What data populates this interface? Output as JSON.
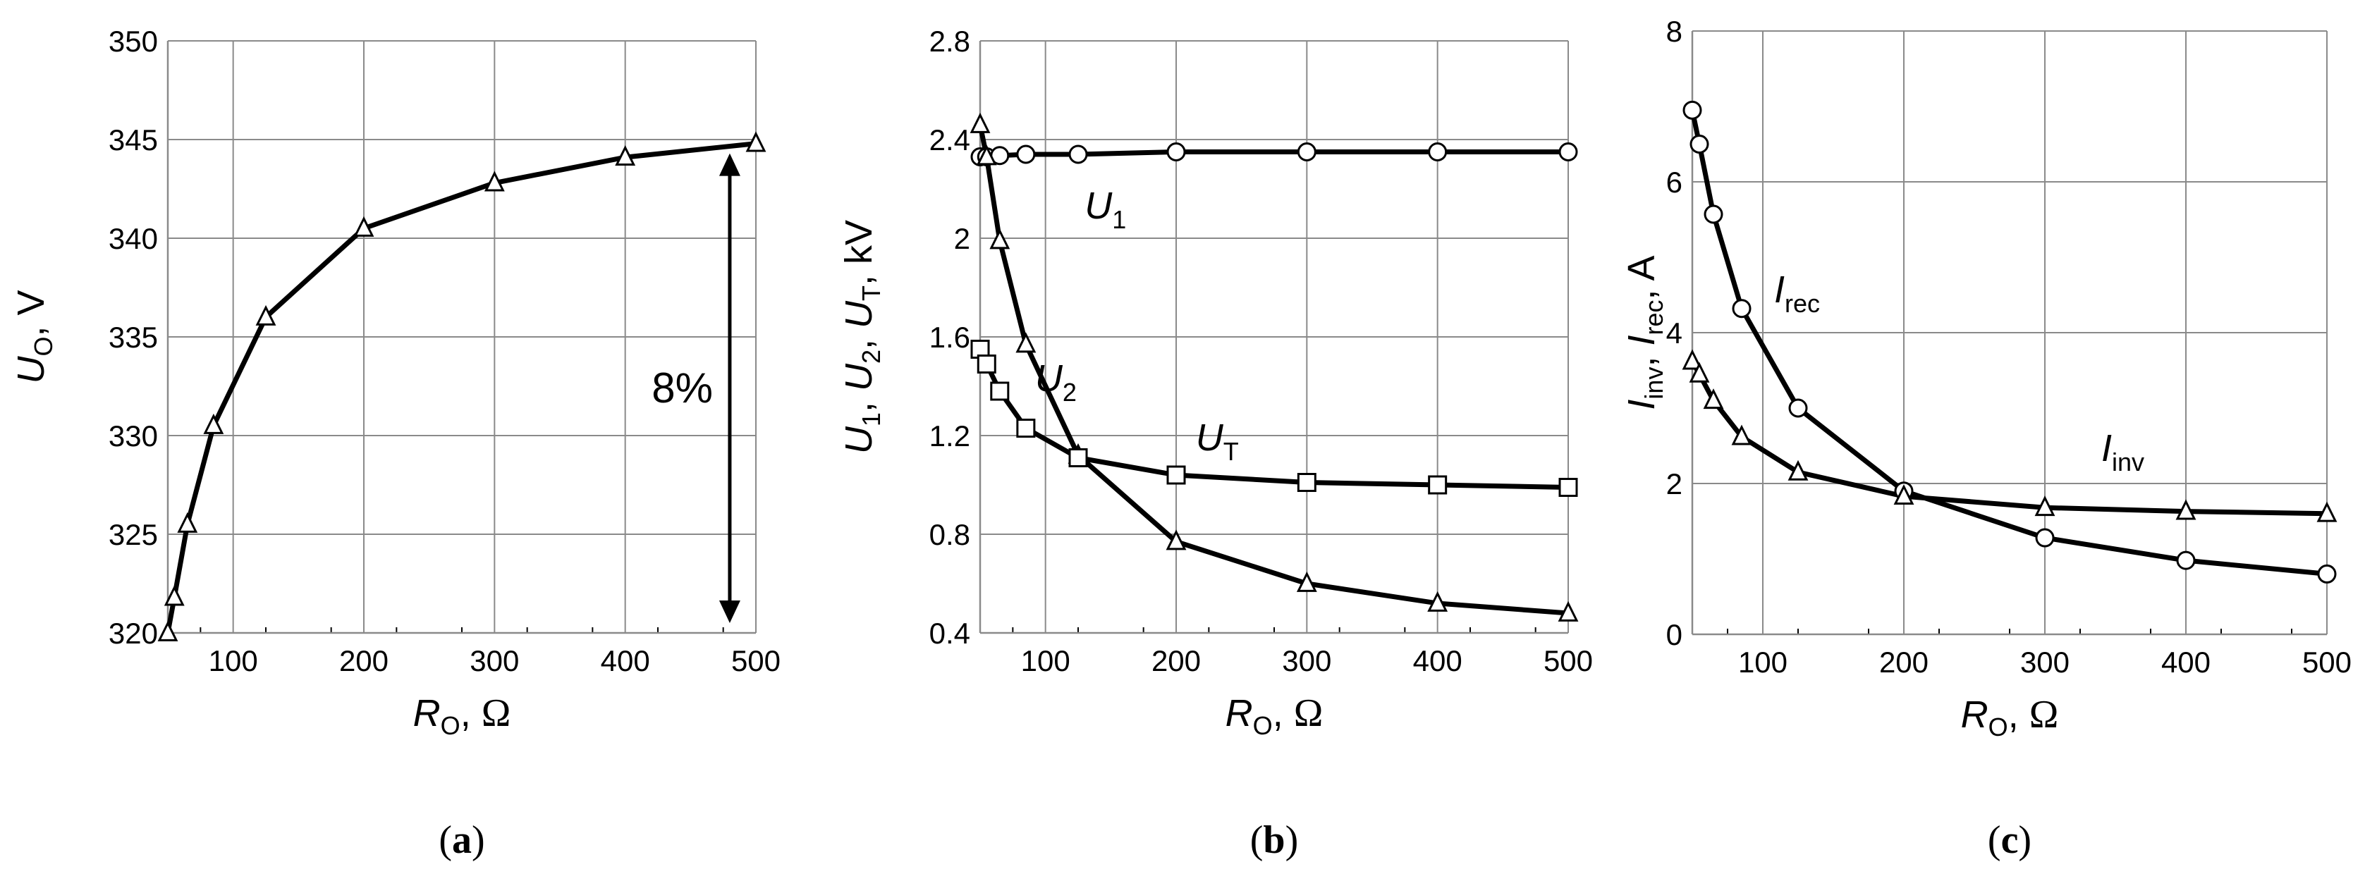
{
  "chart_data": [
    {
      "id": "a",
      "type": "line",
      "panel_label": "a",
      "xlabel": "R",
      "xlabel_sub": "O",
      "xlabel_unit": "Ω",
      "ylabel": "U",
      "ylabel_sub": "O",
      "ylabel_unit": "V",
      "xlim": [
        50,
        500
      ],
      "ylim": [
        320,
        350
      ],
      "xticks": [
        100,
        200,
        300,
        400,
        500
      ],
      "yticks": [
        320,
        325,
        330,
        335,
        340,
        345,
        350
      ],
      "annotation": {
        "text": "8%",
        "x": 480,
        "y_from": 344.3,
        "y_to": 320.5
      },
      "series": [
        {
          "name": "U_O",
          "marker": "triangle",
          "x": [
            50,
            55,
            65,
            85,
            125,
            200,
            300,
            400,
            500
          ],
          "y": [
            320,
            321.8,
            325.5,
            330.5,
            336,
            340.5,
            342.8,
            344.1,
            344.8
          ]
        }
      ]
    },
    {
      "id": "b",
      "type": "line",
      "panel_label": "b",
      "xlabel": "R",
      "xlabel_sub": "O",
      "xlabel_unit": "Ω",
      "ylabel_parts": [
        [
          "U",
          "1"
        ],
        [
          "U",
          "2"
        ],
        [
          "U",
          "T"
        ]
      ],
      "ylabel_unit": "kV",
      "xlim": [
        50,
        500
      ],
      "ylim": [
        0.4,
        2.8
      ],
      "xticks": [
        100,
        200,
        300,
        400,
        500
      ],
      "yticks": [
        0.4,
        0.8,
        1.2,
        1.6,
        2,
        2.4,
        2.8
      ],
      "series": [
        {
          "name": "U_1",
          "label": "U",
          "label_sub": "1",
          "marker": "circle",
          "label_at": [
            130,
            2.08
          ],
          "x": [
            50,
            55,
            65,
            85,
            125,
            200,
            300,
            400,
            500
          ],
          "y": [
            2.33,
            2.33,
            2.335,
            2.34,
            2.34,
            2.35,
            2.35,
            2.35,
            2.35
          ]
        },
        {
          "name": "U_2",
          "label": "U",
          "label_sub": "2",
          "marker": "triangle",
          "label_at": [
            92,
            1.38
          ],
          "x": [
            50,
            55,
            65,
            85,
            125,
            200,
            300,
            400,
            500
          ],
          "y": [
            2.46,
            2.33,
            1.99,
            1.57,
            1.12,
            0.77,
            0.6,
            0.52,
            0.48
          ]
        },
        {
          "name": "U_T",
          "label": "U",
          "label_sub": "T",
          "marker": "square",
          "label_at": [
            215,
            1.14
          ],
          "x": [
            50,
            55,
            65,
            85,
            125,
            200,
            300,
            400,
            500
          ],
          "y": [
            1.55,
            1.49,
            1.38,
            1.23,
            1.11,
            1.04,
            1.01,
            1.0,
            0.99
          ]
        }
      ]
    },
    {
      "id": "c",
      "type": "line",
      "panel_label": "c",
      "xlabel": "R",
      "xlabel_sub": "O",
      "xlabel_unit": "Ω",
      "ylabel_parts": [
        [
          "I",
          "inv"
        ],
        [
          "I",
          "rec"
        ]
      ],
      "ylabel_unit": "A",
      "xlim": [
        50,
        500
      ],
      "ylim": [
        0,
        8
      ],
      "xticks": [
        100,
        200,
        300,
        400,
        500
      ],
      "yticks": [
        0,
        2,
        4,
        6,
        8
      ],
      "series": [
        {
          "name": "I_rec",
          "label": "I",
          "label_sub": "rec",
          "marker": "circle",
          "label_at": [
            108,
            4.4
          ],
          "x": [
            50,
            55,
            65,
            85,
            125,
            200,
            300,
            400,
            500
          ],
          "y": [
            6.95,
            6.5,
            5.57,
            4.32,
            3.0,
            1.9,
            1.28,
            0.98,
            0.8
          ]
        },
        {
          "name": "I_inv",
          "label": "I",
          "label_sub": "inv",
          "marker": "triangle",
          "label_at": [
            340,
            2.3
          ],
          "x": [
            50,
            55,
            65,
            85,
            125,
            200,
            300,
            400,
            500
          ],
          "y": [
            3.62,
            3.45,
            3.1,
            2.62,
            2.15,
            1.83,
            1.68,
            1.63,
            1.6
          ]
        }
      ]
    }
  ]
}
